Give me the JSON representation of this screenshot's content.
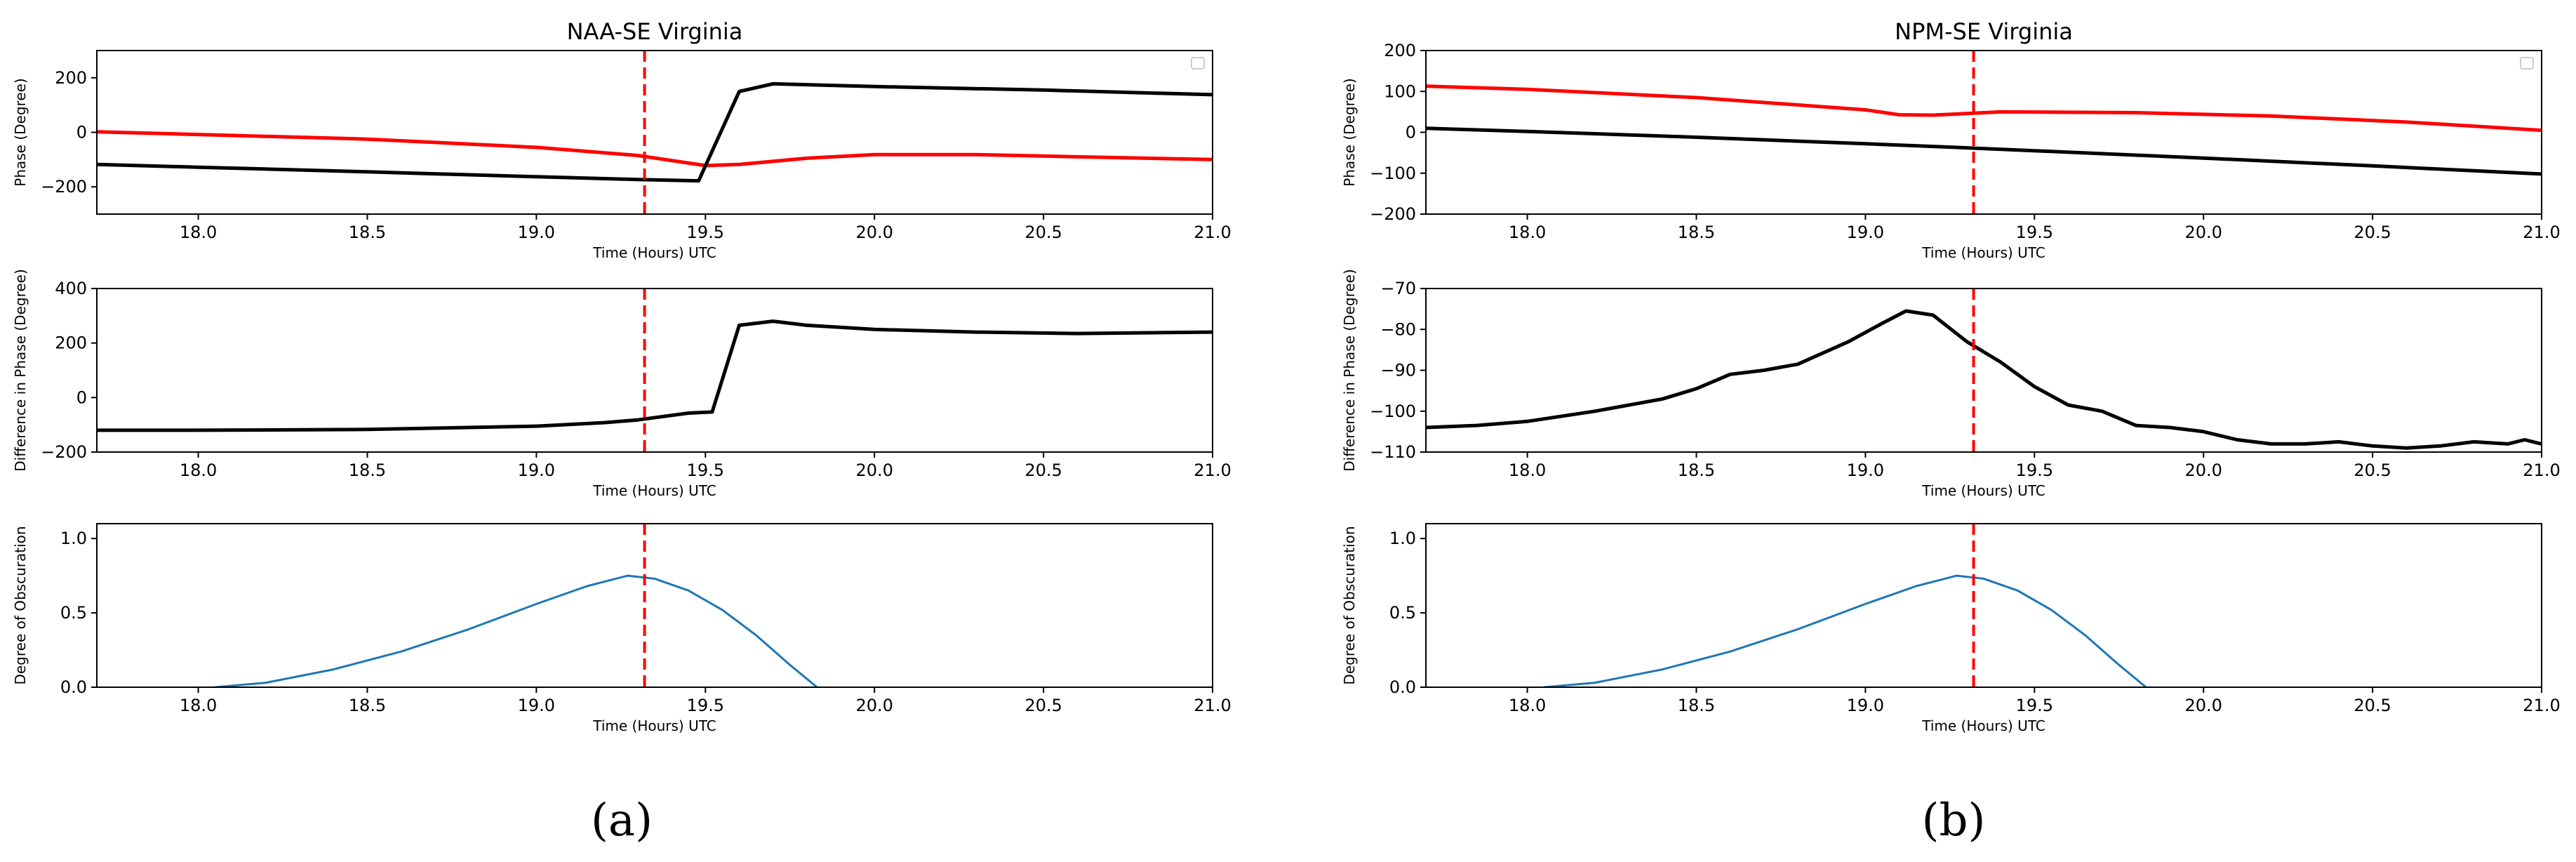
{
  "figure": {
    "captions": [
      "(a)",
      "(b)"
    ]
  },
  "colors": {
    "phase_red": "#ff0000",
    "phase_black": "#000000",
    "diff_black": "#000000",
    "obscuration_blue": "#1f77b4",
    "eclipse_marker": "#ff0000"
  },
  "chart_data": [
    {
      "panel": "a",
      "type": "line",
      "title": "NAA-SE Virginia",
      "xlabel": "Time (Hours) UTC",
      "ylabel": "Phase (Degree)",
      "xlim": [
        17.7,
        21.0
      ],
      "ylim": [
        -300,
        300
      ],
      "xticks": [
        18.0,
        18.5,
        19.0,
        19.5,
        20.0,
        20.5,
        21.0
      ],
      "xtick_labels": [
        "18.0",
        "18.5",
        "19.0",
        "19.5",
        "20.0",
        "20.5",
        "21.0"
      ],
      "yticks": [
        -200,
        0,
        200
      ],
      "ytick_labels": [
        "−200",
        "0",
        "200"
      ],
      "legend": "empty box, top-right",
      "vline_x": 19.32,
      "series": [
        {
          "color": "#ff0000",
          "x": [
            17.7,
            18.0,
            18.5,
            19.0,
            19.3,
            19.5,
            19.6,
            19.8,
            20.0,
            20.3,
            20.6,
            21.0
          ],
          "y": [
            2,
            -8,
            -25,
            -55,
            -85,
            -122,
            -118,
            -95,
            -82,
            -82,
            -90,
            -100
          ]
        },
        {
          "color": "#000000",
          "x": [
            17.7,
            18.0,
            18.5,
            19.0,
            19.3,
            19.48,
            19.6,
            19.7,
            20.0,
            20.5,
            21.0
          ],
          "y": [
            -118,
            -128,
            -145,
            -163,
            -173,
            -178,
            150,
            178,
            168,
            155,
            138
          ]
        }
      ]
    },
    {
      "panel": "a",
      "type": "line",
      "title": "",
      "xlabel": "Time (Hours) UTC",
      "ylabel": "Difference in Phase (Degree)",
      "xlim": [
        17.7,
        21.0
      ],
      "ylim": [
        -200,
        400
      ],
      "xticks": [
        18.0,
        18.5,
        19.0,
        19.5,
        20.0,
        20.5,
        21.0
      ],
      "xtick_labels": [
        "18.0",
        "18.5",
        "19.0",
        "19.5",
        "20.0",
        "20.5",
        "21.0"
      ],
      "yticks": [
        -200,
        0,
        200,
        400
      ],
      "ytick_labels": [
        "−200",
        "0",
        "200",
        "400"
      ],
      "vline_x": 19.32,
      "series": [
        {
          "color": "#000000",
          "x": [
            17.7,
            18.0,
            18.5,
            19.0,
            19.2,
            19.3,
            19.45,
            19.52,
            19.6,
            19.7,
            19.8,
            20.0,
            20.3,
            20.6,
            21.0
          ],
          "y": [
            -120,
            -120,
            -117,
            -105,
            -92,
            -82,
            -57,
            -53,
            265,
            280,
            265,
            250,
            240,
            235,
            240
          ]
        }
      ]
    },
    {
      "panel": "a",
      "type": "line",
      "title": "",
      "xlabel": "Time (Hours) UTC",
      "ylabel": "Degree of Obscuration",
      "xlim": [
        17.7,
        21.0
      ],
      "ylim": [
        0.0,
        1.1
      ],
      "xticks": [
        18.0,
        18.5,
        19.0,
        19.5,
        20.0,
        20.5,
        21.0
      ],
      "xtick_labels": [
        "18.0",
        "18.5",
        "19.0",
        "19.5",
        "20.0",
        "20.5",
        "21.0"
      ],
      "yticks": [
        0.0,
        0.5,
        1.0
      ],
      "ytick_labels": [
        "0.0",
        "0.5",
        "1.0"
      ],
      "vline_x": 19.32,
      "series": [
        {
          "color": "#1f77b4",
          "x": [
            18.05,
            18.2,
            18.4,
            18.6,
            18.8,
            19.0,
            19.15,
            19.27,
            19.35,
            19.45,
            19.55,
            19.65,
            19.75,
            19.83
          ],
          "y": [
            0.0,
            0.03,
            0.12,
            0.24,
            0.39,
            0.56,
            0.68,
            0.75,
            0.73,
            0.65,
            0.52,
            0.35,
            0.15,
            0.0
          ]
        }
      ]
    },
    {
      "panel": "b",
      "type": "line",
      "title": "NPM-SE Virginia",
      "xlabel": "Time (Hours) UTC",
      "ylabel": "Phase (Degree)",
      "xlim": [
        17.7,
        21.0
      ],
      "ylim": [
        -200,
        200
      ],
      "xticks": [
        18.0,
        18.5,
        19.0,
        19.5,
        20.0,
        20.5,
        21.0
      ],
      "xtick_labels": [
        "18.0",
        "18.5",
        "19.0",
        "19.5",
        "20.0",
        "20.5",
        "21.0"
      ],
      "yticks": [
        -200,
        -100,
        0,
        100,
        200
      ],
      "ytick_labels": [
        "−200",
        "−100",
        "0",
        "100",
        "200"
      ],
      "legend": "empty box, top-right",
      "vline_x": 19.32,
      "series": [
        {
          "color": "#ff0000",
          "x": [
            17.7,
            18.0,
            18.5,
            19.0,
            19.1,
            19.2,
            19.4,
            19.8,
            20.2,
            20.6,
            21.0
          ],
          "y": [
            113,
            105,
            85,
            55,
            43,
            42,
            50,
            48,
            40,
            25,
            5
          ]
        },
        {
          "color": "#000000",
          "x": [
            17.7,
            18.0,
            18.5,
            19.0,
            19.3,
            19.5,
            20.0,
            20.5,
            21.0
          ],
          "y": [
            10,
            2,
            -12,
            -28,
            -38,
            -45,
            -63,
            -82,
            -102
          ]
        }
      ]
    },
    {
      "panel": "b",
      "type": "line",
      "title": "",
      "xlabel": "Time (Hours) UTC",
      "ylabel": "Difference in Phase (Degree)",
      "xlim": [
        17.7,
        21.0
      ],
      "ylim": [
        -110,
        -70
      ],
      "xticks": [
        18.0,
        18.5,
        19.0,
        19.5,
        20.0,
        20.5,
        21.0
      ],
      "xtick_labels": [
        "18.0",
        "18.5",
        "19.0",
        "19.5",
        "20.0",
        "20.5",
        "21.0"
      ],
      "yticks": [
        -110,
        -100,
        -90,
        -80,
        -70
      ],
      "ytick_labels": [
        "−110",
        "−100",
        "−90",
        "−80",
        "−70"
      ],
      "vline_x": 19.32,
      "series": [
        {
          "color": "#000000",
          "x": [
            17.7,
            17.85,
            18.0,
            18.2,
            18.4,
            18.5,
            18.6,
            18.7,
            18.8,
            18.95,
            19.05,
            19.12,
            19.2,
            19.3,
            19.4,
            19.5,
            19.6,
            19.7,
            19.8,
            19.9,
            20.0,
            20.1,
            20.2,
            20.3,
            20.4,
            20.5,
            20.6,
            20.7,
            20.8,
            20.9,
            20.95,
            21.0
          ],
          "y": [
            -104,
            -103.5,
            -102.5,
            -100,
            -97,
            -94.5,
            -91,
            -90,
            -88.5,
            -83,
            -78.5,
            -75.5,
            -76.5,
            -83,
            -88,
            -94,
            -98.5,
            -100,
            -103.5,
            -104,
            -105,
            -107,
            -108,
            -108,
            -107.5,
            -108.5,
            -109,
            -108.5,
            -107.5,
            -108,
            -107,
            -108
          ]
        }
      ]
    },
    {
      "panel": "b",
      "type": "line",
      "title": "",
      "xlabel": "Time (Hours) UTC",
      "ylabel": "Degree of Obscuration",
      "xlim": [
        17.7,
        21.0
      ],
      "ylim": [
        0.0,
        1.1
      ],
      "xticks": [
        18.0,
        18.5,
        19.0,
        19.5,
        20.0,
        20.5,
        21.0
      ],
      "xtick_labels": [
        "18.0",
        "18.5",
        "19.0",
        "19.5",
        "20.0",
        "20.5",
        "21.0"
      ],
      "yticks": [
        0.0,
        0.5,
        1.0
      ],
      "ytick_labels": [
        "0.0",
        "0.5",
        "1.0"
      ],
      "vline_x": 19.32,
      "series": [
        {
          "color": "#1f77b4",
          "x": [
            18.05,
            18.2,
            18.4,
            18.6,
            18.8,
            19.0,
            19.15,
            19.27,
            19.35,
            19.45,
            19.55,
            19.65,
            19.75,
            19.83
          ],
          "y": [
            0.0,
            0.03,
            0.12,
            0.24,
            0.39,
            0.56,
            0.68,
            0.75,
            0.73,
            0.65,
            0.52,
            0.35,
            0.15,
            0.0
          ]
        }
      ]
    }
  ]
}
